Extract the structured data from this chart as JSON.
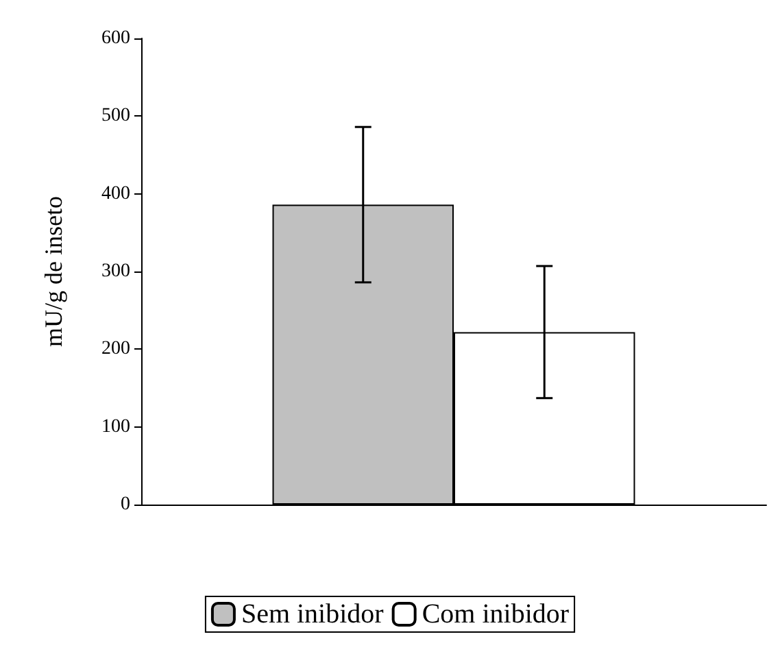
{
  "chart_data": {
    "type": "bar",
    "ylabel": "mU/g de inseto",
    "categories": [
      null
    ],
    "series": [
      {
        "name": "Sem inibidor",
        "color": "#c0c0c0",
        "values": [
          386
        ],
        "errors": [
          100
        ]
      },
      {
        "name": "Com inibidor",
        "color": "#ffffff",
        "values": [
          222
        ],
        "errors": [
          85
        ]
      }
    ],
    "ylim": [
      0,
      600
    ],
    "yticks": [
      0,
      100,
      200,
      300,
      400,
      500,
      600
    ],
    "grid": false,
    "legend": "bottom"
  }
}
